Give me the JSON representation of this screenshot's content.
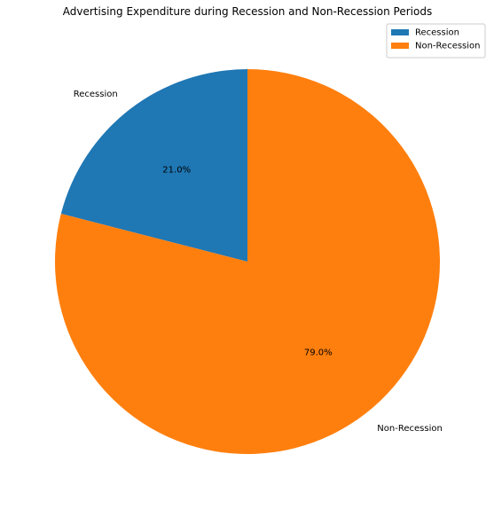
{
  "chart_data": {
    "type": "pie",
    "title": "Advertising Expenditure during Recession and Non-Recession Periods",
    "categories": [
      "Recession",
      "Non-Recession"
    ],
    "values": [
      21.0,
      79.0
    ],
    "percent_labels": [
      "21.0%",
      "79.0%"
    ],
    "colors": [
      "#1f77b4",
      "#ff7f0e"
    ],
    "start_angle_deg": 90,
    "direction": "counterclockwise",
    "legend": {
      "entries": [
        "Recession",
        "Non-Recession"
      ],
      "placement": "top-right"
    }
  }
}
